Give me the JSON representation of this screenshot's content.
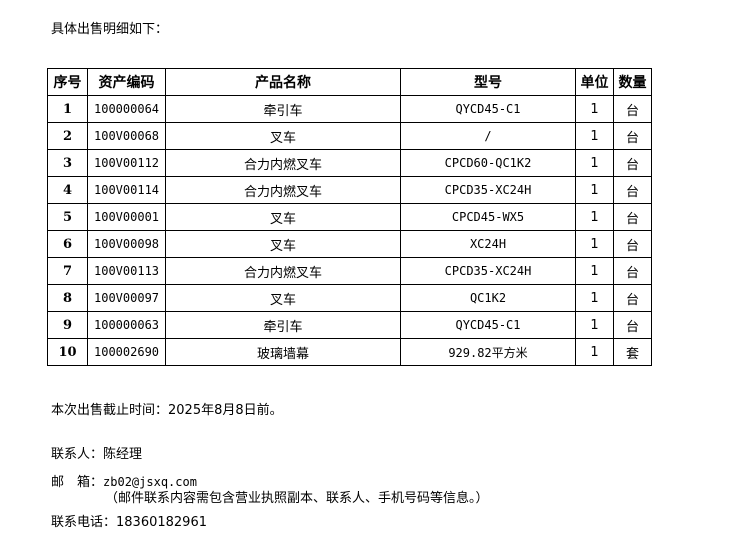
{
  "intro": "具体出售明细如下：",
  "table": {
    "headers": [
      "序号",
      "资产编码",
      "产品名称",
      "型号",
      "单位",
      "数量"
    ],
    "rows": [
      [
        "1",
        "100000064",
        "牵引车",
        "QYCD45-C1",
        "1",
        "台"
      ],
      [
        "2",
        "100V00068",
        "叉车",
        "/",
        "1",
        "台"
      ],
      [
        "3",
        "100V00112",
        "合力内燃叉车",
        "CPCD60-QC1K2",
        "1",
        "台"
      ],
      [
        "4",
        "100V00114",
        "合力内燃叉车",
        "CPCD35-XC24H",
        "1",
        "台"
      ],
      [
        "5",
        "100V00001",
        "叉车",
        "CPCD45-WX5",
        "1",
        "台"
      ],
      [
        "6",
        "100V00098",
        "叉车",
        "XC24H",
        "1",
        "台"
      ],
      [
        "7",
        "100V00113",
        "合力内燃叉车",
        "CPCD35-XC24H",
        "1",
        "台"
      ],
      [
        "8",
        "100V00097",
        "叉车",
        "QC1K2",
        "1",
        "台"
      ],
      [
        "9",
        "100000063",
        "牵引车",
        "QYCD45-C1",
        "1",
        "台"
      ],
      [
        "10",
        "100002690",
        "玻璃墙幕",
        "929.82平方米",
        "1",
        "套"
      ]
    ]
  },
  "deadline": "本次出售截止时间：2025年8月8日前。",
  "contact_person": "联系人：陈经理",
  "email_label": "邮　箱：",
  "email": "zb02@jsxq.com",
  "email_note": "（邮件联系内容需包含营业执照副本、联系人、手机号码等信息。）",
  "phone": "联系电话：18360182961"
}
